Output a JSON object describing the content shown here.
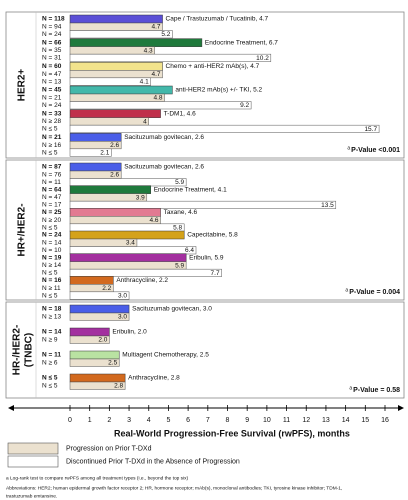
{
  "chart_data": {
    "type": "bar",
    "x_label": "Real-World Progression-Free Survival (rwPFS), months",
    "xlim": [
      0,
      16
    ],
    "xticks": [
      0,
      1,
      2,
      3,
      4,
      5,
      6,
      7,
      8,
      9,
      10,
      11,
      12,
      13,
      14,
      15,
      16
    ],
    "legend": [
      {
        "label": "Progression on Prior T-DXd",
        "color": "#ebe1cf"
      },
      {
        "label": "Discontinued Prior T-DXd in the Absence of Progression",
        "color": "#ffffff"
      }
    ],
    "p_value_note": "a",
    "panels": [
      {
        "label": "HER2+",
        "p_value": "P-Value <0.001",
        "groups": [
          {
            "n": "N = 118",
            "label": "Cape / Trastuzumab / Tucatinib, 4.7",
            "value": 4.7,
            "color": "#5b4fd6",
            "rows": [
              {
                "n": "N = 94",
                "value": 4.7
              },
              {
                "n": "N = 24",
                "value": 5.2
              }
            ]
          },
          {
            "n": "N = 66",
            "label": "Endocrine Treatment, 6.7",
            "value": 6.7,
            "color": "#1f7a3c",
            "rows": [
              {
                "n": "N = 35",
                "value": 4.3
              },
              {
                "n": "N = 31",
                "value": 10.2
              }
            ]
          },
          {
            "n": "N = 60",
            "label": "Chemo + anti-HER2 mAb(s), 4.7",
            "value": 4.7,
            "color": "#f2e38c",
            "rows": [
              {
                "n": "N = 47",
                "value": 4.7
              },
              {
                "n": "N = 13",
                "value": 4.1
              }
            ]
          },
          {
            "n": "N = 45",
            "label": "anti-HER2 mAb(s) +/- TKI, 5.2",
            "value": 5.2,
            "color": "#43b8aa",
            "rows": [
              {
                "n": "N = 21",
                "value": 4.8
              },
              {
                "n": "N = 24",
                "value": 9.2
              }
            ]
          },
          {
            "n": "N = 33",
            "label": "T-DM1, 4.6",
            "value": 4.6,
            "color": "#c02f4b",
            "rows": [
              {
                "n": "N ≥ 28",
                "value": 4.0
              },
              {
                "n": "N ≤ 5",
                "value": 15.7
              }
            ]
          },
          {
            "n": "N = 21",
            "label": "Sacituzumab govitecan, 2.6",
            "value": 2.6,
            "color": "#4a5ee8",
            "rows": [
              {
                "n": "N ≥ 16",
                "value": 2.6
              },
              {
                "n": "N ≤ 5",
                "value": 2.1
              }
            ]
          }
        ]
      },
      {
        "label": "HR+/HER2-",
        "p_value": "P-Value = 0.004",
        "groups": [
          {
            "n": "N = 87",
            "label": "Sacituzumab govitecan, 2.6",
            "value": 2.6,
            "color": "#4a5ee8",
            "rows": [
              {
                "n": "N = 76",
                "value": 2.6
              },
              {
                "n": "N = 11",
                "value": 5.9
              }
            ]
          },
          {
            "n": "N = 64",
            "label": "Endocrine Treatment, 4.1",
            "value": 4.1,
            "color": "#1f7a3c",
            "rows": [
              {
                "n": "N = 47",
                "value": 3.9
              },
              {
                "n": "N = 17",
                "value": 13.5
              }
            ]
          },
          {
            "n": "N = 25",
            "label": "Taxane, 4.6",
            "value": 4.6,
            "color": "#e27a92",
            "rows": [
              {
                "n": "N ≥ 20",
                "value": 4.6
              },
              {
                "n": "N ≤ 5",
                "value": 5.8
              }
            ]
          },
          {
            "n": "N = 24",
            "label": "Capecitabine, 5.8",
            "value": 5.8,
            "color": "#d4a21a",
            "rows": [
              {
                "n": "N = 14",
                "value": 3.4
              },
              {
                "n": "N = 10",
                "value": 6.4
              }
            ]
          },
          {
            "n": "N = 19",
            "label": "Eribulin, 5.9",
            "value": 5.9,
            "color": "#a3309f",
            "rows": [
              {
                "n": "N ≥ 14",
                "value": 5.9
              },
              {
                "n": "N ≤ 5",
                "value": 7.7
              }
            ]
          },
          {
            "n": "N = 16",
            "label": "Anthracycline, 2.2",
            "value": 2.2,
            "color": "#d2691e",
            "rows": [
              {
                "n": "N ≥ 11",
                "value": 2.2
              },
              {
                "n": "N ≤ 5",
                "value": 3.0,
                "value_label": "3.0"
              }
            ]
          }
        ]
      },
      {
        "label": "HR-/HER2-",
        "sublabel": "(TNBC)",
        "p_value": "P-Value = 0.58",
        "groups": [
          {
            "n": "N = 18",
            "label": "Sacituzumab govitecan, 3.0",
            "value": 3.0,
            "color": "#4a5ee8",
            "rows": [
              {
                "n": "N ≥ 13",
                "value": 3.0,
                "value_label": "3.0"
              }
            ]
          },
          {
            "n": "N = 14",
            "label": "Eribulin, 2.0",
            "value": 2.0,
            "color": "#a3309f",
            "rows": [
              {
                "n": "N ≥ 9",
                "value": 2.0,
                "value_label": "2.0"
              }
            ]
          },
          {
            "n": "N = 11",
            "label": "Multiagent Chemotherapy, 2.5",
            "value": 2.5,
            "color": "#b9e2a2",
            "rows": [
              {
                "n": "N ≥ 6",
                "value": 2.5
              }
            ]
          },
          {
            "n": "N ≤ 5",
            "label": "Anthracycline, 2.8",
            "value": 2.8,
            "color": "#d2691e",
            "rows": [
              {
                "n": "N ≤ 5",
                "value": 2.8
              }
            ]
          }
        ]
      }
    ],
    "footnotes": [
      "a Log-rank test to compare rwPFS among all treatment types (i.e., beyond the top six)",
      "Abbreviations: HER2; human epidermal growth factor receptor 2; HR, hormone receptor; mAb(s), monoclonal antibodies; TKI, tyrosine kinase inhibitor; TDM-1,",
      "trastuzumab emtansine."
    ]
  }
}
